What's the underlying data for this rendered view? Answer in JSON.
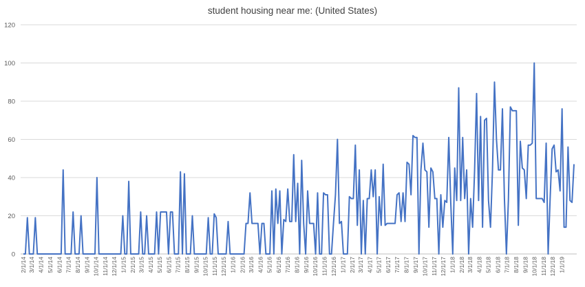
{
  "chart_data": {
    "type": "line",
    "title": "student housing near me: (United States)",
    "xlabel": "",
    "ylabel": "",
    "ylim": [
      0,
      120
    ],
    "yticks": [
      0,
      20,
      40,
      60,
      80,
      100,
      120
    ],
    "grid": true,
    "legend": "none",
    "line_color": "#4472C4",
    "x_start": "2/1/14",
    "x_end": "2/10/19",
    "xtick_labels": [
      "2/1/14",
      "3/1/14",
      "4/1/14",
      "5/1/14",
      "6/1/14",
      "7/1/14",
      "8/1/14",
      "9/1/14",
      "10/1/14",
      "11/1/14",
      "12/1/14",
      "1/1/15",
      "2/1/15",
      "3/1/15",
      "4/1/15",
      "5/1/15",
      "6/1/15",
      "7/1/15",
      "8/1/15",
      "9/1/15",
      "10/1/15",
      "11/1/15",
      "12/1/15",
      "1/1/16",
      "2/1/16",
      "3/1/16",
      "4/1/16",
      "5/1/16",
      "6/1/16",
      "7/1/16",
      "8/1/16",
      "9/1/16",
      "10/1/16",
      "11/1/16",
      "12/1/16",
      "1/1/17",
      "2/1/17",
      "3/1/17",
      "4/1/17",
      "5/1/17",
      "6/1/17",
      "7/1/17",
      "8/1/17",
      "9/1/17",
      "10/1/17",
      "11/1/17",
      "12/1/17",
      "1/1/18",
      "2/1/18",
      "3/1/18",
      "4/1/18",
      "5/1/18",
      "6/1/18",
      "7/1/18",
      "8/1/18",
      "9/1/18",
      "10/1/18",
      "11/1/18",
      "12/1/18",
      "1/1/19"
    ],
    "series": [
      {
        "values": [
          0,
          0,
          19,
          0,
          0,
          0,
          19,
          0,
          0,
          0,
          0,
          0,
          0,
          0,
          0,
          0,
          0,
          0,
          0,
          0,
          44,
          0,
          0,
          0,
          0,
          22,
          0,
          0,
          0,
          20,
          0,
          0,
          0,
          0,
          0,
          0,
          0,
          40,
          0,
          0,
          0,
          0,
          0,
          0,
          0,
          0,
          0,
          0,
          0,
          0,
          20,
          0,
          0,
          38,
          0,
          0,
          0,
          0,
          0,
          22,
          0,
          0,
          20,
          0,
          0,
          0,
          0,
          22,
          0,
          22,
          22,
          22,
          22,
          0,
          22,
          22,
          0,
          0,
          0,
          43,
          0,
          42,
          0,
          0,
          0,
          20,
          0,
          0,
          0,
          0,
          0,
          0,
          0,
          19,
          0,
          0,
          21,
          19,
          0,
          0,
          0,
          0,
          0,
          17,
          0,
          0,
          0,
          0,
          0,
          0,
          0,
          0,
          16,
          16,
          32,
          16,
          16,
          16,
          16,
          0,
          16,
          16,
          0,
          0,
          0,
          33,
          0,
          34,
          16,
          33,
          0,
          18,
          17,
          34,
          17,
          17,
          52,
          17,
          37,
          0,
          49,
          16,
          0,
          33,
          16,
          16,
          16,
          0,
          32,
          0,
          0,
          32,
          31,
          31,
          0,
          0,
          16,
          31,
          60,
          16,
          17,
          0,
          0,
          0,
          30,
          29,
          29,
          57,
          15,
          44,
          0,
          28,
          0,
          29,
          29,
          44,
          30,
          44,
          0,
          30,
          15,
          47,
          15,
          16,
          16,
          16,
          16,
          16,
          31,
          32,
          17,
          32,
          17,
          48,
          47,
          31,
          62,
          61,
          61,
          0,
          44,
          58,
          44,
          43,
          14,
          45,
          43,
          29,
          29,
          0,
          31,
          14,
          28,
          27,
          61,
          27,
          0,
          45,
          28,
          87,
          28,
          61,
          29,
          44,
          0,
          29,
          14,
          44,
          84,
          28,
          72,
          14,
          70,
          71,
          28,
          14,
          44,
          90,
          60,
          44,
          44,
          76,
          29,
          0,
          28,
          77,
          75,
          75,
          75,
          15,
          59,
          45,
          44,
          29,
          57,
          57,
          58,
          100,
          29,
          29,
          29,
          29,
          27,
          58,
          0,
          29,
          55,
          57,
          43,
          44,
          33,
          76,
          14,
          14,
          56,
          28,
          27,
          47
        ]
      }
    ]
  }
}
